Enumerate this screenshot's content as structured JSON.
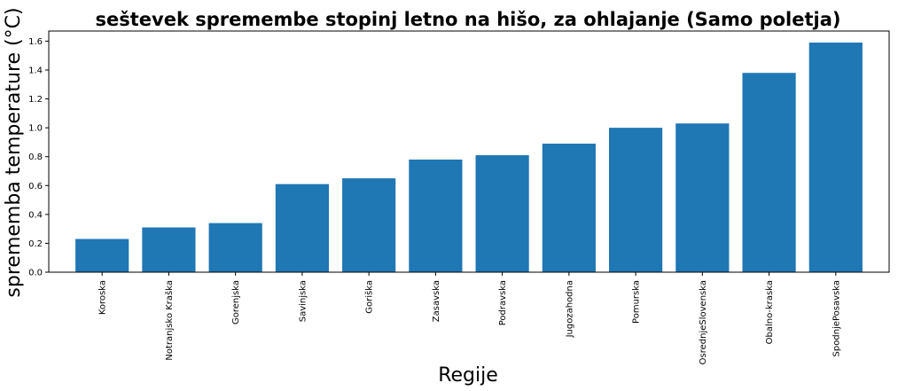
{
  "chart_data": {
    "type": "bar",
    "title": "seštevek spremembe stopinj letno na hišo, za ohlajanje (Samo poletja)",
    "xlabel": "Regije",
    "ylabel": "sprememba temperature (°C)",
    "categories": [
      "Koroska",
      "Notranjsko Kraška",
      "Gorenjska",
      "Savinjska",
      "Goriška",
      "Zasavska",
      "Podravska",
      "Jugozahodna",
      "Pomurska",
      "OsrednjeSlovenska",
      "Obalno-kraska",
      "SpodnjePosavska"
    ],
    "values": [
      0.23,
      0.31,
      0.34,
      0.61,
      0.65,
      0.78,
      0.81,
      0.89,
      1.0,
      1.03,
      1.38,
      1.59
    ],
    "yticks": [
      "0.0",
      "0.2",
      "0.4",
      "0.6",
      "0.8",
      "1.0",
      "1.2",
      "1.4",
      "1.6"
    ],
    "ylim": [
      0,
      1.67
    ],
    "bar_color": "#1f77b4",
    "grid": false
  }
}
